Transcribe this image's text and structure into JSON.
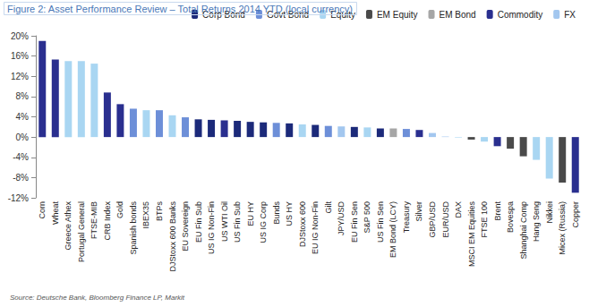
{
  "chart_data": {
    "type": "bar",
    "title": "Figure 2: Asset Performance Review – Total Returns 2014 YTD (local currency)",
    "source": "Source: Deutsche Bank, Bloomberg Finance LP, Markit",
    "categories": [
      "Corn",
      "Wheat",
      "Greece Athex",
      "Portugal General",
      "FTSE-MIB",
      "CRB Index",
      "Gold",
      "Spanish bonds",
      "IBEX35",
      "BTPs",
      "DJStoxx 600 Banks",
      "EU Sovereign",
      "EU Fin Sub",
      "US IG Non-Fin",
      "US WTI Oil",
      "US Fin Sub",
      "EU HY",
      "US IG Corp",
      "Bunds",
      "US HY",
      "DJStoxx 600",
      "EU IG Non-Fin",
      "Gilt",
      "JPY/USD",
      "EU Fin Sen",
      "S&P 500",
      "US Fin Sen",
      "EM Bond (LCY)",
      "Treasury",
      "Silver",
      "GBP/USD",
      "EUR/USD",
      "DAX",
      "MSCI EM Equities",
      "FTSE 100",
      "Brent",
      "Bovespa",
      "Shanghai Comp",
      "Hang Seng",
      "Nikkei",
      "Micex (Russia)",
      "Copper"
    ],
    "series": [
      {
        "name": "Corp Bond",
        "color": "#1c2a7a",
        "values": [
          null,
          null,
          null,
          null,
          null,
          null,
          null,
          null,
          null,
          null,
          null,
          null,
          3.5,
          3.4,
          null,
          3.2,
          3.0,
          2.9,
          null,
          2.7,
          null,
          2.4,
          null,
          null,
          2.0,
          null,
          1.7,
          null,
          null,
          null,
          null,
          null,
          null,
          null,
          null,
          null,
          null,
          null,
          null,
          null,
          null,
          null
        ]
      },
      {
        "name": "Govt Bond",
        "color": "#6d8fd8",
        "values": [
          null,
          null,
          null,
          null,
          null,
          null,
          null,
          5.6,
          null,
          5.3,
          null,
          3.9,
          null,
          null,
          null,
          null,
          null,
          null,
          2.8,
          null,
          null,
          null,
          2.2,
          null,
          null,
          null,
          null,
          null,
          1.6,
          null,
          null,
          null,
          null,
          null,
          null,
          null,
          null,
          null,
          null,
          null,
          null,
          null
        ]
      },
      {
        "name": "Equity",
        "color": "#a9d6f2",
        "values": [
          null,
          null,
          15.0,
          15.0,
          14.5,
          null,
          null,
          null,
          5.3,
          null,
          4.3,
          null,
          null,
          null,
          null,
          null,
          null,
          null,
          null,
          null,
          2.5,
          null,
          null,
          null,
          null,
          1.9,
          null,
          null,
          null,
          null,
          null,
          null,
          -0.1,
          null,
          -0.9,
          null,
          null,
          null,
          -4.5,
          -8.2,
          null,
          null
        ]
      },
      {
        "name": "EM Equity",
        "color": "#4a4a4a",
        "values": [
          null,
          null,
          null,
          null,
          null,
          null,
          null,
          null,
          null,
          null,
          null,
          null,
          null,
          null,
          null,
          null,
          null,
          null,
          null,
          null,
          null,
          null,
          null,
          null,
          null,
          null,
          null,
          null,
          null,
          null,
          null,
          null,
          null,
          -0.5,
          null,
          null,
          -2.3,
          -3.8,
          null,
          null,
          -9.0,
          null
        ]
      },
      {
        "name": "EM Bond",
        "color": "#a6a6a6",
        "values": [
          null,
          null,
          null,
          null,
          null,
          null,
          null,
          null,
          null,
          null,
          null,
          null,
          null,
          null,
          null,
          null,
          null,
          null,
          null,
          null,
          null,
          null,
          null,
          null,
          null,
          null,
          null,
          1.7,
          null,
          null,
          null,
          null,
          null,
          null,
          null,
          null,
          null,
          null,
          null,
          null,
          null,
          null
        ]
      },
      {
        "name": "Commodity",
        "color": "#2a2f8f",
        "values": [
          19.0,
          15.3,
          null,
          null,
          null,
          8.8,
          6.5,
          null,
          null,
          null,
          null,
          null,
          null,
          null,
          3.3,
          null,
          null,
          null,
          null,
          null,
          null,
          null,
          null,
          null,
          null,
          null,
          null,
          null,
          null,
          1.4,
          null,
          null,
          null,
          null,
          null,
          -1.8,
          null,
          null,
          null,
          null,
          null,
          -11.0
        ]
      },
      {
        "name": "FX",
        "color": "#a3c7ef",
        "values": [
          null,
          null,
          null,
          null,
          null,
          null,
          null,
          null,
          null,
          null,
          null,
          null,
          null,
          null,
          null,
          null,
          null,
          null,
          null,
          null,
          null,
          null,
          null,
          2.1,
          null,
          null,
          null,
          null,
          null,
          null,
          0.8,
          0.1,
          null,
          null,
          null,
          null,
          null,
          null,
          null,
          null,
          null,
          null
        ]
      }
    ],
    "ylim": [
      -12,
      20
    ],
    "yticks": [
      {
        "value": -12,
        "label": "-12%"
      },
      {
        "value": -8,
        "label": "-8%"
      },
      {
        "value": -4,
        "label": "-4%"
      },
      {
        "value": 0,
        "label": "0%"
      },
      {
        "value": 4,
        "label": "4%"
      },
      {
        "value": 8,
        "label": "8%"
      },
      {
        "value": 12,
        "label": "12%"
      },
      {
        "value": 16,
        "label": "16%"
      },
      {
        "value": 20,
        "label": "20%"
      }
    ],
    "grid": false,
    "legend": "top"
  }
}
